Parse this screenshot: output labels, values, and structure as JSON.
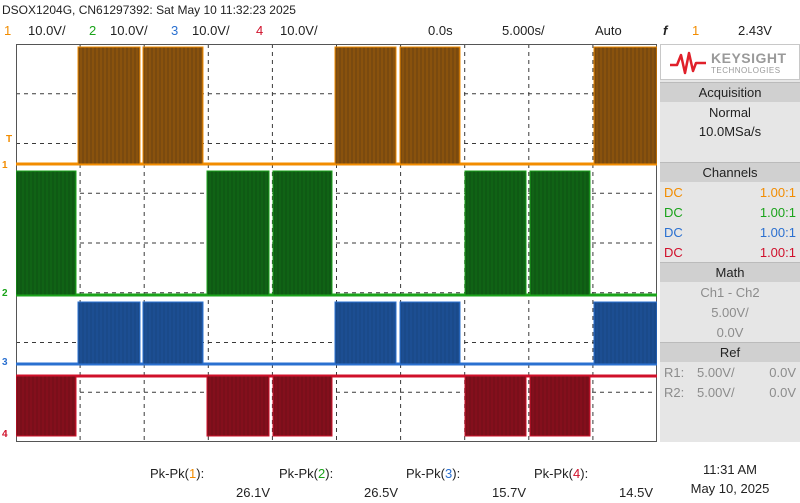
{
  "header": {
    "title": "DSOX1204G, CN61297392: Sat May 10 11:32:23 2025"
  },
  "topbar": {
    "ch1_num": "1",
    "ch1_scale": "10.0V/",
    "ch2_num": "2",
    "ch2_scale": "10.0V/",
    "ch3_num": "3",
    "ch3_scale": "10.0V/",
    "ch4_num": "4",
    "ch4_scale": "10.0V/",
    "time_offset": "0.0s",
    "time_scale": "5.000s/",
    "trigger_mode": "Auto",
    "trigger_symbol": "f",
    "trigger_channel": "1",
    "trigger_level": "2.43V"
  },
  "markers": {
    "trig": "T",
    "ch1": "1",
    "ch2": "2",
    "ch3": "3",
    "ch4": "4"
  },
  "colors": {
    "ch1": "#f28c00",
    "ch2": "#1aa31a",
    "ch3": "#2a70d0",
    "ch4": "#d0102a",
    "ch1_fill": "#7a4a0f",
    "ch2_fill": "#0f5a14",
    "ch3_fill": "#1a4a8a",
    "ch4_fill": "#7a0f1a"
  },
  "logo": {
    "name": "KEYSIGHT",
    "sub": "TECHNOLOGIES"
  },
  "acquisition": {
    "heading": "Acquisition",
    "mode": "Normal",
    "rate": "10.0MSa/s"
  },
  "channels": {
    "heading": "Channels",
    "rows": [
      {
        "coupling": "DC",
        "probe": "1.00:1"
      },
      {
        "coupling": "DC",
        "probe": "1.00:1"
      },
      {
        "coupling": "DC",
        "probe": "1.00:1"
      },
      {
        "coupling": "DC",
        "probe": "1.00:1"
      }
    ]
  },
  "math": {
    "heading": "Math",
    "function": "Ch1 - Ch2",
    "scale": "5.00V/",
    "offset": "0.0V"
  },
  "ref": {
    "heading": "Ref",
    "r1_label": "R1:",
    "r1_scale": "5.00V/",
    "r1_offset": "0.0V",
    "r2_label": "R2:",
    "r2_scale": "5.00V/",
    "r2_offset": "0.0V"
  },
  "measurements": [
    {
      "label_pre": "Pk-Pk(",
      "ch": "1",
      "label_post": "):",
      "value": "26.1V"
    },
    {
      "label_pre": "Pk-Pk(",
      "ch": "2",
      "label_post": "):",
      "value": "26.5V"
    },
    {
      "label_pre": "Pk-Pk(",
      "ch": "3",
      "label_post": "):",
      "value": "15.7V"
    },
    {
      "label_pre": "Pk-Pk(",
      "ch": "4",
      "label_post": "):",
      "value": "14.5V"
    }
  ],
  "clock": {
    "time": "11:31 AM",
    "date": "May 10, 2025"
  }
}
